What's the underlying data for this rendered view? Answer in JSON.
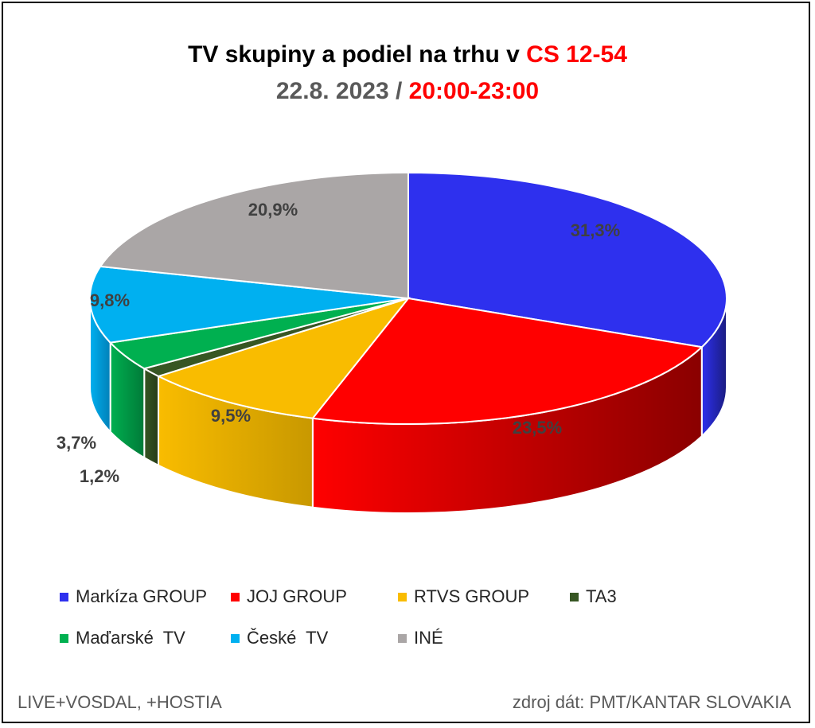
{
  "title": {
    "line1_prefix": "TV skupiny a podiel na trhu v ",
    "line1_highlight": "CS 12-54",
    "line2_prefix": "22.8. 2023 / ",
    "line2_highlight": "20:00-23:00"
  },
  "footer": {
    "left": "LIVE+VOSDAL, +HOSTIA",
    "right": "zdroj dát: PMT/KANTAR SLOVAKIA"
  },
  "chart_data": {
    "type": "pie",
    "style": "3d",
    "legend_position": "bottom",
    "categories": [
      "Markíza GROUP",
      "JOJ GROUP",
      "RTVS GROUP",
      "TA3",
      "Maďarské  TV",
      "České  TV",
      "INÉ"
    ],
    "values": [
      31.3,
      23.5,
      9.5,
      1.2,
      3.7,
      9.8,
      20.9
    ],
    "data_labels": [
      "31,3%",
      "23,5%",
      "9,5%",
      "1,2%",
      "3,7%",
      "9,8%",
      "20,9%"
    ],
    "colors": [
      "#2e30ee",
      "#ff0000",
      "#f9bc00",
      "#375623",
      "#00b050",
      "#00b0f0",
      "#aaa6a6"
    ],
    "side_colors": [
      "#1a1c80",
      "#8a0000",
      "#c89800",
      "#263c18",
      "#007a38",
      "#0080b8",
      "#808080"
    ]
  }
}
